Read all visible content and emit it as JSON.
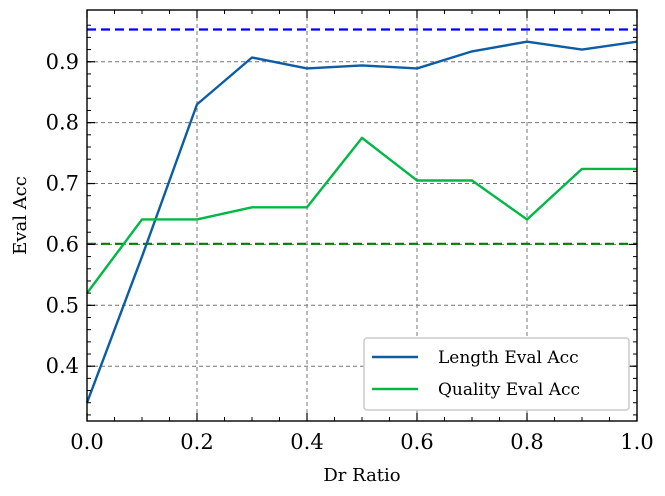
{
  "chart_data": {
    "type": "line",
    "xlabel": "Dr Ratio",
    "ylabel": "Eval Acc",
    "xlim": [
      0.0,
      1.0
    ],
    "ylim": [
      0.31,
      0.985
    ],
    "x_ticks": [
      "0.0",
      "0.2",
      "0.4",
      "0.6",
      "0.8",
      "1.0"
    ],
    "y_ticks": [
      "0.4",
      "0.5",
      "0.6",
      "0.7",
      "0.8",
      "0.9"
    ],
    "grid": true,
    "legend_position": "lower-right",
    "series": [
      {
        "name": "Length Eval Acc",
        "color": "#0c5da5",
        "x": [
          0.0,
          0.1,
          0.2,
          0.3,
          0.4,
          0.5,
          0.6,
          0.7,
          0.8,
          0.9,
          1.0
        ],
        "y": [
          0.34,
          0.58,
          0.83,
          0.907,
          0.889,
          0.894,
          0.889,
          0.917,
          0.933,
          0.92,
          0.933
        ]
      },
      {
        "name": "Quality Eval Acc",
        "color": "#00b945",
        "x": [
          0.0,
          0.1,
          0.2,
          0.3,
          0.4,
          0.5,
          0.6,
          0.7,
          0.8,
          0.9,
          1.0
        ],
        "y": [
          0.52,
          0.641,
          0.641,
          0.661,
          0.661,
          0.775,
          0.705,
          0.705,
          0.641,
          0.724,
          0.724
        ]
      }
    ],
    "reference_lines": [
      {
        "y": 0.953,
        "color": "#0000ff",
        "style": "dashed"
      },
      {
        "y": 0.601,
        "color": "#008000",
        "style": "dashed"
      }
    ]
  }
}
